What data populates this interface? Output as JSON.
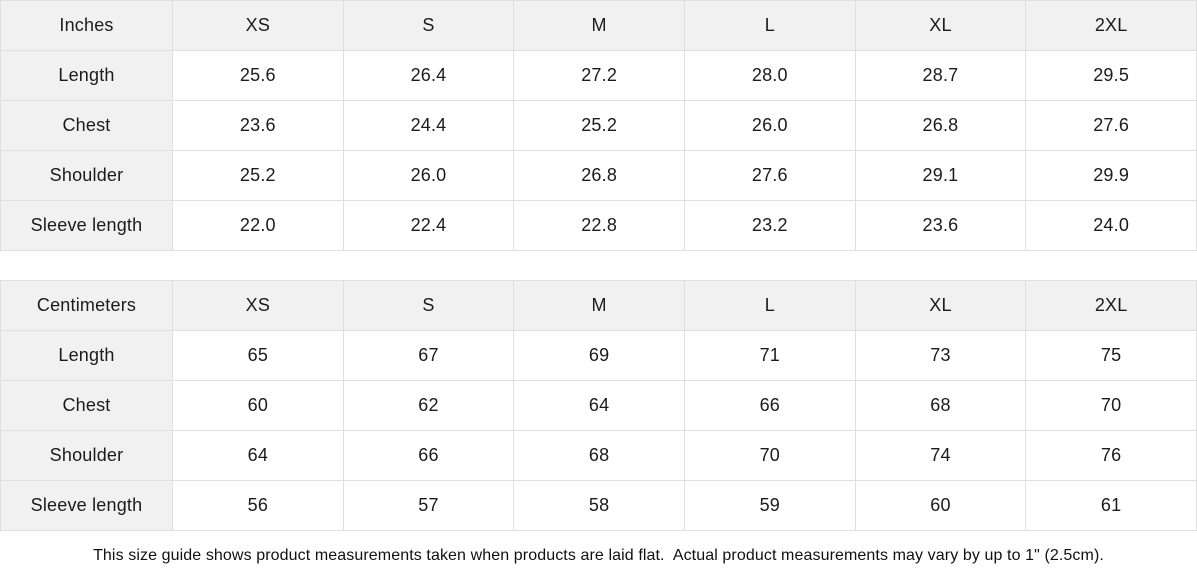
{
  "tables": [
    {
      "unit_label": "Inches",
      "sizes": [
        "XS",
        "S",
        "M",
        "L",
        "XL",
        "2XL"
      ],
      "rows": [
        {
          "label": "Length",
          "values": [
            "25.6",
            "26.4",
            "27.2",
            "28.0",
            "28.7",
            "29.5"
          ]
        },
        {
          "label": "Chest",
          "values": [
            "23.6",
            "24.4",
            "25.2",
            "26.0",
            "26.8",
            "27.6"
          ]
        },
        {
          "label": "Shoulder",
          "values": [
            "25.2",
            "26.0",
            "26.8",
            "27.6",
            "29.1",
            "29.9"
          ]
        },
        {
          "label": "Sleeve length",
          "values": [
            "22.0",
            "22.4",
            "22.8",
            "23.2",
            "23.6",
            "24.0"
          ]
        }
      ]
    },
    {
      "unit_label": "Centimeters",
      "sizes": [
        "XS",
        "S",
        "M",
        "L",
        "XL",
        "2XL"
      ],
      "rows": [
        {
          "label": "Length",
          "values": [
            "65",
            "67",
            "69",
            "71",
            "73",
            "75"
          ]
        },
        {
          "label": "Chest",
          "values": [
            "60",
            "62",
            "64",
            "66",
            "68",
            "70"
          ]
        },
        {
          "label": "Shoulder",
          "values": [
            "64",
            "66",
            "68",
            "70",
            "74",
            "76"
          ]
        },
        {
          "label": "Sleeve length",
          "values": [
            "56",
            "57",
            "58",
            "59",
            "60",
            "61"
          ]
        }
      ]
    }
  ],
  "footer": {
    "note": "This size guide shows product measurements taken when products are laid flat.  Actual product measurements may vary by up to 1\" (2.5cm)."
  },
  "colors": {
    "header_bg": "#f1f1f1",
    "border": "#dfdfdf",
    "text": "#1b1b1b"
  }
}
